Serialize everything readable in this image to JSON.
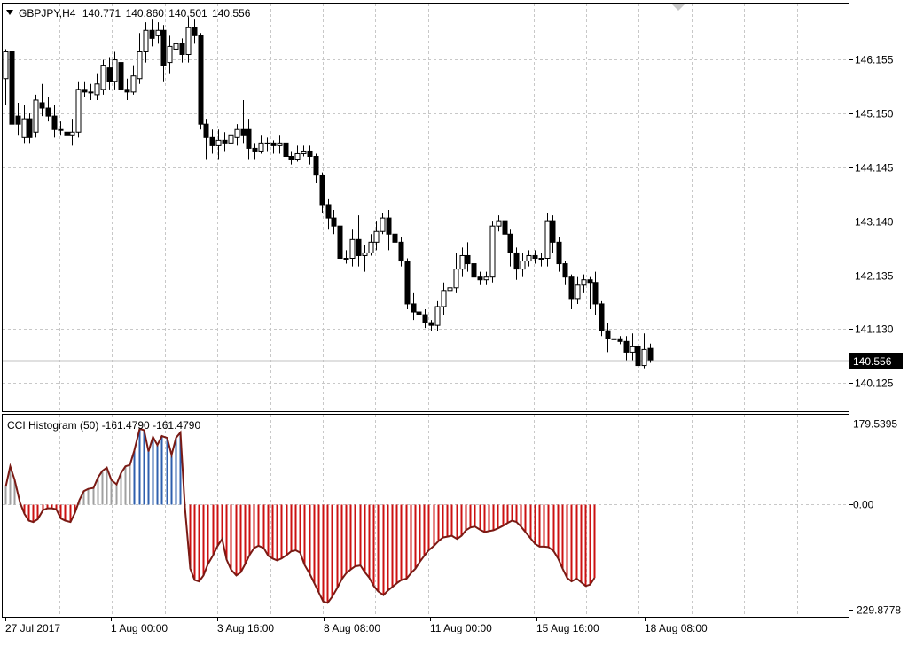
{
  "chart_data": [
    {
      "type": "candlestick",
      "header": {
        "arrow_icon": "triangle-down-icon",
        "symbol": "GBPJPY,H4",
        "open": "140.771",
        "high": "140.860",
        "low": "140.501",
        "close": "140.556"
      },
      "ylim": [
        139.6,
        147.2
      ],
      "y_ticks": [
        "146.155",
        "145.150",
        "144.145",
        "143.140",
        "142.135",
        "141.130",
        "140.125"
      ],
      "current_price_label": "140.556",
      "current_price": 140.556,
      "grid": true,
      "candles": [
        [
          145.8,
          146.3,
          145.3,
          146.35
        ],
        [
          146.3,
          144.95,
          144.85,
          146.4
        ],
        [
          145.1,
          144.95,
          144.75,
          145.35
        ],
        [
          144.7,
          145.05,
          144.6,
          145.3
        ],
        [
          145.05,
          144.7,
          144.6,
          145.15
        ],
        [
          144.8,
          145.4,
          144.7,
          145.5
        ],
        [
          145.35,
          145.25,
          145.1,
          145.7
        ],
        [
          145.25,
          145.1,
          145.0,
          145.45
        ],
        [
          145.1,
          144.85,
          144.7,
          145.3
        ],
        [
          144.85,
          144.85,
          144.75,
          145.0
        ],
        [
          144.8,
          144.75,
          144.6,
          144.95
        ],
        [
          144.75,
          144.8,
          144.55,
          145.05
        ],
        [
          144.8,
          145.6,
          144.7,
          145.75
        ],
        [
          145.6,
          145.55,
          145.45,
          145.75
        ],
        [
          145.55,
          145.55,
          145.4,
          145.7
        ],
        [
          145.5,
          145.7,
          145.4,
          145.9
        ],
        [
          145.6,
          146.05,
          145.5,
          146.15
        ],
        [
          146.0,
          145.75,
          145.6,
          146.2
        ],
        [
          145.75,
          146.15,
          145.6,
          146.3
        ],
        [
          146.1,
          145.6,
          145.4,
          146.2
        ],
        [
          145.6,
          145.55,
          145.4,
          145.8
        ],
        [
          145.55,
          145.85,
          145.5,
          146.05
        ],
        [
          145.8,
          146.3,
          145.7,
          146.65
        ],
        [
          146.3,
          146.7,
          146.1,
          146.85
        ],
        [
          146.7,
          146.55,
          146.4,
          146.9
        ],
        [
          146.6,
          146.7,
          146.45,
          146.85
        ],
        [
          146.7,
          146.05,
          145.75,
          146.8
        ],
        [
          146.1,
          146.4,
          145.9,
          146.6
        ],
        [
          146.35,
          146.45,
          146.2,
          146.6
        ],
        [
          146.45,
          146.25,
          146.1,
          146.55
        ],
        [
          146.25,
          146.75,
          146.1,
          146.95
        ],
        [
          146.75,
          146.6,
          146.45,
          146.9
        ],
        [
          146.6,
          144.95,
          144.85,
          146.65
        ],
        [
          144.95,
          144.7,
          144.3,
          145.05
        ],
        [
          144.7,
          144.55,
          144.4,
          144.85
        ],
        [
          144.55,
          144.65,
          144.3,
          144.85
        ],
        [
          144.65,
          144.6,
          144.45,
          144.8
        ],
        [
          144.6,
          144.75,
          144.5,
          144.9
        ],
        [
          144.7,
          144.85,
          144.55,
          144.95
        ],
        [
          144.85,
          144.75,
          144.6,
          145.4
        ],
        [
          144.85,
          144.5,
          144.3,
          145.05
        ],
        [
          144.5,
          144.45,
          144.3,
          144.6
        ],
        [
          144.45,
          144.6,
          144.4,
          144.75
        ],
        [
          144.6,
          144.6,
          144.45,
          144.7
        ],
        [
          144.6,
          144.55,
          144.4,
          144.65
        ],
        [
          144.55,
          144.6,
          144.4,
          144.75
        ],
        [
          144.6,
          144.35,
          144.2,
          144.65
        ],
        [
          144.35,
          144.3,
          144.2,
          144.45
        ],
        [
          144.3,
          144.4,
          144.25,
          144.55
        ],
        [
          144.4,
          144.45,
          144.35,
          144.55
        ],
        [
          144.45,
          144.35,
          144.2,
          144.55
        ],
        [
          144.35,
          144.0,
          143.85,
          144.4
        ],
        [
          144.0,
          143.45,
          143.3,
          144.05
        ],
        [
          143.45,
          143.2,
          143.0,
          143.55
        ],
        [
          143.2,
          143.05,
          142.9,
          143.35
        ],
        [
          143.05,
          142.45,
          142.3,
          143.1
        ],
        [
          142.45,
          142.45,
          142.35,
          142.6
        ],
        [
          142.45,
          142.8,
          142.3,
          143.0
        ],
        [
          142.8,
          142.5,
          142.3,
          143.25
        ],
        [
          142.5,
          142.55,
          142.2,
          142.7
        ],
        [
          142.55,
          142.75,
          142.5,
          142.9
        ],
        [
          142.75,
          142.95,
          142.6,
          143.15
        ],
        [
          142.95,
          143.2,
          142.9,
          143.3
        ],
        [
          143.2,
          142.9,
          142.6,
          143.35
        ],
        [
          142.9,
          142.75,
          142.6,
          143.0
        ],
        [
          142.75,
          142.4,
          142.3,
          142.85
        ],
        [
          142.4,
          141.6,
          141.5,
          142.45
        ],
        [
          141.6,
          141.45,
          141.3,
          141.8
        ],
        [
          141.45,
          141.4,
          141.25,
          141.55
        ],
        [
          141.4,
          141.25,
          141.15,
          141.5
        ],
        [
          141.25,
          141.2,
          141.1,
          141.3
        ],
        [
          141.2,
          141.55,
          141.1,
          141.65
        ],
        [
          141.55,
          141.85,
          141.4,
          142.0
        ],
        [
          141.85,
          141.9,
          141.75,
          142.15
        ],
        [
          141.9,
          142.25,
          141.8,
          142.55
        ],
        [
          142.25,
          142.5,
          142.1,
          142.65
        ],
        [
          142.5,
          142.35,
          142.2,
          142.75
        ],
        [
          142.35,
          142.1,
          142.0,
          142.45
        ],
        [
          142.1,
          142.05,
          141.95,
          142.2
        ],
        [
          142.05,
          142.1,
          141.95,
          142.2
        ],
        [
          142.1,
          143.05,
          142.0,
          143.15
        ],
        [
          143.05,
          143.15,
          142.95,
          143.25
        ],
        [
          143.15,
          142.9,
          142.75,
          143.4
        ],
        [
          142.9,
          142.55,
          142.3,
          143.0
        ],
        [
          142.55,
          142.25,
          142.05,
          142.65
        ],
        [
          142.25,
          142.4,
          142.1,
          142.55
        ],
        [
          142.4,
          142.5,
          142.3,
          142.6
        ],
        [
          142.5,
          142.45,
          142.35,
          142.6
        ],
        [
          142.45,
          142.45,
          142.3,
          142.55
        ],
        [
          142.45,
          143.15,
          142.3,
          143.3
        ],
        [
          143.15,
          142.75,
          142.55,
          143.25
        ],
        [
          142.75,
          142.35,
          142.2,
          142.85
        ],
        [
          142.35,
          142.1,
          141.95,
          142.4
        ],
        [
          142.1,
          141.7,
          141.5,
          142.15
        ],
        [
          141.7,
          141.95,
          141.6,
          142.1
        ],
        [
          141.95,
          142.05,
          141.8,
          142.15
        ],
        [
          142.05,
          142.0,
          141.5,
          142.1
        ],
        [
          142.0,
          141.6,
          141.4,
          142.2
        ],
        [
          141.6,
          141.1,
          141.0,
          141.65
        ],
        [
          141.1,
          140.95,
          140.7,
          141.25
        ],
        [
          140.95,
          140.95,
          140.9,
          141.05
        ],
        [
          140.95,
          140.9,
          140.85,
          141.0
        ],
        [
          140.9,
          140.7,
          140.55,
          141.0
        ],
        [
          140.7,
          140.8,
          140.55,
          141.05
        ],
        [
          140.8,
          140.45,
          139.85,
          140.9
        ],
        [
          140.45,
          140.75,
          140.4,
          141.05
        ],
        [
          140.77,
          140.556,
          140.5,
          140.86
        ]
      ]
    },
    {
      "type": "histogram",
      "title": "CCI Histogram (50) -161.4790 -161.4790",
      "ylim": [
        -229.8778,
        179.5395
      ],
      "y_ticks": [
        "179.5395",
        "0.00",
        "-229.8778"
      ],
      "zero_label": "0.00",
      "colors": {
        "positive_weak": "#a0a0a0",
        "positive_strong": "#2e5fae",
        "negative": "#cc1111",
        "line": "#7a1a14"
      },
      "strong_threshold": 100,
      "values": [
        40,
        85,
        55,
        5,
        -20,
        -35,
        -38,
        -32,
        -12,
        -8,
        -8,
        -10,
        -30,
        -35,
        -38,
        -18,
        10,
        30,
        35,
        37,
        60,
        75,
        82,
        55,
        45,
        70,
        85,
        88,
        120,
        168,
        165,
        118,
        150,
        132,
        152,
        148,
        110,
        148,
        160,
        -5,
        -140,
        -165,
        -168,
        -155,
        -130,
        -110,
        -90,
        -75,
        -120,
        -142,
        -155,
        -148,
        -130,
        -110,
        -95,
        -90,
        -95,
        -112,
        -118,
        -122,
        -118,
        -110,
        -102,
        -100,
        -105,
        -132,
        -152,
        -172,
        -192,
        -212,
        -215,
        -202,
        -182,
        -163,
        -150,
        -142,
        -135,
        -133,
        -148,
        -160,
        -178,
        -190,
        -198,
        -188,
        -180,
        -172,
        -165,
        -162,
        -150,
        -140,
        -125,
        -112,
        -100,
        -90,
        -80,
        -72,
        -70,
        -68,
        -75,
        -68,
        -56,
        -50,
        -48,
        -55,
        -60,
        -58,
        -56,
        -52,
        -46,
        -40,
        -35,
        -38,
        -48,
        -60,
        -74,
        -86,
        -92,
        -92,
        -93,
        -102,
        -118,
        -140,
        -160,
        -168,
        -162,
        -170,
        -178,
        -175,
        -160
      ]
    }
  ],
  "time_axis": {
    "labels": [
      "27 Jul 2017",
      "1 Aug 00:00",
      "3 Aug 16:00",
      "8 Aug 08:00",
      "11 Aug 00:00",
      "15 Aug 16:00",
      "18 Aug 08:00"
    ]
  },
  "scroll_marker_icon": "triangle-down-shift-icon"
}
